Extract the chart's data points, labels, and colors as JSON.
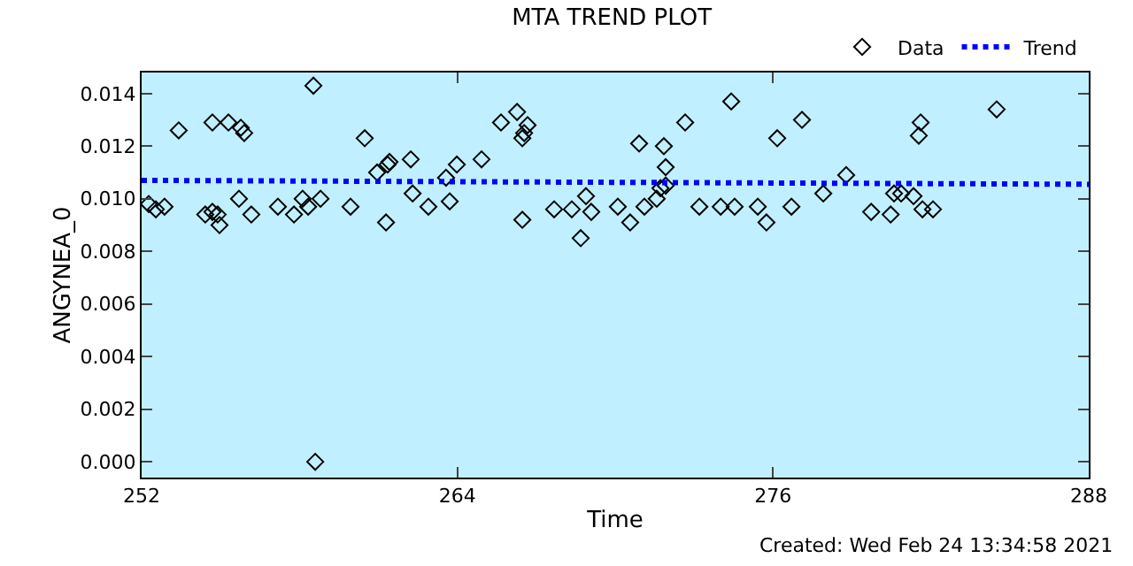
{
  "chart_data": {
    "type": "scatter",
    "title": "MTA TREND PLOT",
    "xlabel": "Time",
    "ylabel": "ANGYNEA_0",
    "annotations": [
      "Created: Wed Feb 24 13:34:58 2021"
    ],
    "xlim": [
      252,
      288
    ],
    "xticks": [
      252,
      264,
      276,
      288
    ],
    "ylim": [
      -0.0006,
      0.0148
    ],
    "yticks": [
      {
        "value": 0,
        "label": "0.000"
      },
      0.002,
      0.004,
      0.006,
      0.008,
      {
        "value": 0.01,
        "label": "0.010"
      },
      0.012,
      0.014
    ],
    "grid": false,
    "legend": "top right",
    "series": [
      {
        "name": "Data",
        "marker": "diamond",
        "color": "#000000",
        "x": [
          252.27,
          252.54,
          252.87,
          253.41,
          254.42,
          254.69,
          254.69,
          254.89,
          254.96,
          255.3,
          255.77,
          255.9,
          255.7,
          256.17,
          257.18,
          257.79,
          258.12,
          258.33,
          258.53,
          258.8,
          258.6,
          259.94,
          260.48,
          260.95,
          261.29,
          261.35,
          261.42,
          262.23,
          262.3,
          262.9,
          263.57,
          263.71,
          263.98,
          264.92,
          265.66,
          266.27,
          266.67,
          266.54,
          266.47,
          266.47,
          267.68,
          268.35,
          268.89,
          269.09,
          268.69,
          270.1,
          270.57,
          270.91,
          271.11,
          271.58,
          271.72,
          271.85,
          271.92,
          271.92,
          272.66,
          273.2,
          274.01,
          274.41,
          274.54,
          275.42,
          275.75,
          276.16,
          276.7,
          277.1,
          277.91,
          278.78,
          279.73,
          280.47,
          280.6,
          280.87,
          281.34,
          281.61,
          281.54,
          281.68,
          282.08,
          284.5
        ],
        "values": [
          0.0098,
          0.0096,
          0.0097,
          0.0126,
          0.0094,
          0.0129,
          0.0095,
          0.0094,
          0.009,
          0.0129,
          0.0127,
          0.0125,
          0.01,
          0.0094,
          0.0097,
          0.0094,
          0.01,
          0.0097,
          0.0143,
          0.01,
          0.0,
          0.0097,
          0.0123,
          0.011,
          0.0091,
          0.0113,
          0.0114,
          0.0115,
          0.0102,
          0.0097,
          0.0108,
          0.0099,
          0.0113,
          0.0115,
          0.0129,
          0.0133,
          0.0128,
          0.0125,
          0.0123,
          0.0092,
          0.0096,
          0.0096,
          0.0101,
          0.0095,
          0.0085,
          0.0097,
          0.0091,
          0.0121,
          0.0097,
          0.01,
          0.0104,
          0.012,
          0.0112,
          0.0105,
          0.0129,
          0.0097,
          0.0097,
          0.0137,
          0.0097,
          0.0097,
          0.0091,
          0.0123,
          0.0097,
          0.013,
          0.0102,
          0.0109,
          0.0095,
          0.0094,
          0.0102,
          0.0102,
          0.0101,
          0.0129,
          0.0124,
          0.0096,
          0.0096,
          0.0134
        ]
      },
      {
        "name": "Trend",
        "type": "line",
        "line_style": "dotted",
        "color": "#0000ff",
        "x": [
          252,
          288
        ],
        "values": [
          0.0107,
          0.01055
        ]
      }
    ]
  }
}
